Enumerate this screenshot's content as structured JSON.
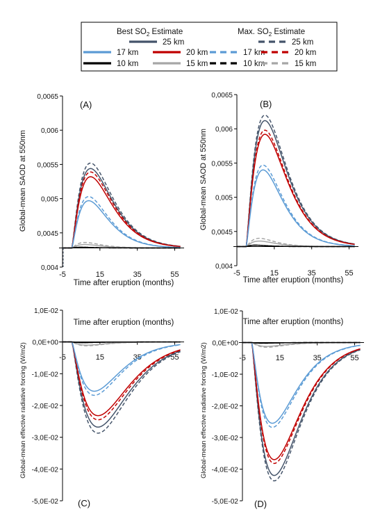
{
  "legend": {
    "best_title_main": "Best SO",
    "best_title_sub": "2",
    "best_title_tail": " Estimate",
    "max_title_main": "Max. SO",
    "max_title_sub": "2",
    "max_title_tail": " Estimate",
    "best_items": [
      {
        "label": "25 km",
        "color": "#44546a",
        "dashed": false
      },
      {
        "label": "17 km",
        "color": "#5b9bd5",
        "dashed": false
      },
      {
        "label": "20 km",
        "color": "#c00000",
        "dashed": false
      },
      {
        "label": "10 km",
        "color": "#000000",
        "dashed": false
      },
      {
        "label": "15 km",
        "color": "#a6a6a6",
        "dashed": false
      }
    ],
    "max_items": [
      {
        "label": "25 km",
        "color": "#44546a",
        "dashed": true
      },
      {
        "label": "17 km",
        "color": "#5b9bd5",
        "dashed": true
      },
      {
        "label": "20 km",
        "color": "#c00000",
        "dashed": true
      },
      {
        "label": "10 km",
        "color": "#000000",
        "dashed": true
      },
      {
        "label": "15 km",
        "color": "#a6a6a6",
        "dashed": true
      }
    ]
  },
  "chart_data": [
    {
      "type": "line",
      "panel_label": "(A)",
      "xlabel": "Time after eruption (months)",
      "ylabel": "Global-mean SAOD at 550nm",
      "xlim": [
        -5,
        60
      ],
      "ylim": [
        0.004,
        0.0065
      ],
      "xticks": [
        "-5",
        "15",
        "35",
        "55"
      ],
      "yticks": [
        "0,004",
        "0,0045",
        "0,005",
        "0,0055",
        "0,006",
        "0,0065"
      ],
      "baseline": 0.00428,
      "series": [
        {
          "name": "25 km",
          "estimate": "Best",
          "color": "#44546a",
          "dashed": false,
          "peak": 0.00544,
          "peak_month": 10
        },
        {
          "name": "25 km",
          "estimate": "Max.",
          "color": "#44546a",
          "dashed": true,
          "peak": 0.00552,
          "peak_month": 10
        },
        {
          "name": "20 km",
          "estimate": "Best",
          "color": "#c00000",
          "dashed": false,
          "peak": 0.00532,
          "peak_month": 10
        },
        {
          "name": "20 km",
          "estimate": "Max.",
          "color": "#c00000",
          "dashed": true,
          "peak": 0.00539,
          "peak_month": 10
        },
        {
          "name": "17 km",
          "estimate": "Best",
          "color": "#5b9bd5",
          "dashed": false,
          "peak": 0.00497,
          "peak_month": 9
        },
        {
          "name": "17 km",
          "estimate": "Max.",
          "color": "#5b9bd5",
          "dashed": true,
          "peak": 0.00503,
          "peak_month": 9
        },
        {
          "name": "15 km",
          "estimate": "Best",
          "color": "#a6a6a6",
          "dashed": false,
          "peak": 0.00433,
          "peak_month": 7
        },
        {
          "name": "15 km",
          "estimate": "Max.",
          "color": "#a6a6a6",
          "dashed": true,
          "peak": 0.00436,
          "peak_month": 7
        },
        {
          "name": "10 km",
          "estimate": "Best",
          "color": "#000000",
          "dashed": false,
          "peak": 0.00429,
          "peak_month": 5
        },
        {
          "name": "10 km",
          "estimate": "Max.",
          "color": "#000000",
          "dashed": true,
          "peak": 0.00429,
          "peak_month": 5
        }
      ]
    },
    {
      "type": "line",
      "panel_label": "(B)",
      "xlabel": "Time after eruption (months)",
      "ylabel": "Global-mean SAOD at 550nm",
      "xlim": [
        -5,
        60
      ],
      "ylim": [
        0.004,
        0.0065
      ],
      "xticks": [
        "-5",
        "15",
        "35",
        "55"
      ],
      "yticks": [
        "0,004",
        "0,0045",
        "0,005",
        "0,0055",
        "0,006",
        "0,0065"
      ],
      "baseline": 0.00428,
      "series": [
        {
          "name": "25 km",
          "estimate": "Best",
          "color": "#44546a",
          "dashed": false,
          "peak": 0.00612,
          "peak_month": 10
        },
        {
          "name": "25 km",
          "estimate": "Max.",
          "color": "#44546a",
          "dashed": true,
          "peak": 0.0062,
          "peak_month": 10
        },
        {
          "name": "20 km",
          "estimate": "Best",
          "color": "#c00000",
          "dashed": false,
          "peak": 0.00592,
          "peak_month": 10
        },
        {
          "name": "20 km",
          "estimate": "Max.",
          "color": "#c00000",
          "dashed": true,
          "peak": 0.00598,
          "peak_month": 10
        },
        {
          "name": "17 km",
          "estimate": "Best",
          "color": "#5b9bd5",
          "dashed": false,
          "peak": 0.0054,
          "peak_month": 9
        },
        {
          "name": "17 km",
          "estimate": "Max.",
          "color": "#5b9bd5",
          "dashed": true,
          "peak": 0.00547,
          "peak_month": 9
        },
        {
          "name": "15 km",
          "estimate": "Best",
          "color": "#a6a6a6",
          "dashed": false,
          "peak": 0.00436,
          "peak_month": 7
        },
        {
          "name": "15 km",
          "estimate": "Max.",
          "color": "#a6a6a6",
          "dashed": true,
          "peak": 0.0044,
          "peak_month": 7
        },
        {
          "name": "10 km",
          "estimate": "Best",
          "color": "#000000",
          "dashed": false,
          "peak": 0.0043,
          "peak_month": 5
        },
        {
          "name": "10 km",
          "estimate": "Max.",
          "color": "#000000",
          "dashed": true,
          "peak": 0.0043,
          "peak_month": 5
        }
      ]
    },
    {
      "type": "line",
      "panel_label": "(C)",
      "xlabel": "Time after eruption (months)",
      "ylabel": "Global-mean effective radiative forcing (W/m2)",
      "xlim": [
        -5,
        60
      ],
      "ylim": [
        -0.05,
        0.01
      ],
      "xticks": [
        "-5",
        "15",
        "35",
        "55"
      ],
      "yticks": [
        "1,0E-02",
        "0,0E+00",
        "-1,0E-02",
        "-2,0E-02",
        "-3,0E-02",
        "-4,0E-02",
        "-5,0E-02"
      ],
      "baseline": 0,
      "series": [
        {
          "name": "25 km",
          "estimate": "Best",
          "color": "#44546a",
          "dashed": false,
          "peak": -0.0268,
          "peak_month": 14
        },
        {
          "name": "25 km",
          "estimate": "Max.",
          "color": "#44546a",
          "dashed": true,
          "peak": -0.0287,
          "peak_month": 14
        },
        {
          "name": "20 km",
          "estimate": "Best",
          "color": "#c00000",
          "dashed": false,
          "peak": -0.0232,
          "peak_month": 14
        },
        {
          "name": "20 km",
          "estimate": "Max.",
          "color": "#c00000",
          "dashed": true,
          "peak": -0.0245,
          "peak_month": 14
        },
        {
          "name": "17 km",
          "estimate": "Best",
          "color": "#5b9bd5",
          "dashed": false,
          "peak": -0.0155,
          "peak_month": 12
        },
        {
          "name": "17 km",
          "estimate": "Max.",
          "color": "#5b9bd5",
          "dashed": true,
          "peak": -0.0168,
          "peak_month": 12
        },
        {
          "name": "15 km",
          "estimate": "Best",
          "color": "#a6a6a6",
          "dashed": false,
          "peak": -0.001,
          "peak_month": 8
        },
        {
          "name": "15 km",
          "estimate": "Max.",
          "color": "#a6a6a6",
          "dashed": true,
          "peak": -0.0012,
          "peak_month": 8
        },
        {
          "name": "10 km",
          "estimate": "Best",
          "color": "#000000",
          "dashed": false,
          "peak": -0.0002,
          "peak_month": 6
        },
        {
          "name": "10 km",
          "estimate": "Max.",
          "color": "#000000",
          "dashed": true,
          "peak": -0.0002,
          "peak_month": 6
        }
      ]
    },
    {
      "type": "line",
      "panel_label": "(D)",
      "xlabel": "Time after eruption (months)",
      "ylabel": "Global-mean effective radiative forcing (W/m2)",
      "xlim": [
        -5,
        60
      ],
      "ylim": [
        -0.05,
        0.01
      ],
      "xticks": [
        "-5",
        "15",
        "35",
        "55"
      ],
      "yticks": [
        "1,0E-02",
        "0,0E+00",
        "-1,0E-02",
        "-2,0E-02",
        "-3,0E-02",
        "-4,0E-02",
        "-5,0E-02"
      ],
      "baseline": 0,
      "series": [
        {
          "name": "25 km",
          "estimate": "Best",
          "color": "#44546a",
          "dashed": false,
          "peak": -0.042,
          "peak_month": 12
        },
        {
          "name": "25 km",
          "estimate": "Max.",
          "color": "#44546a",
          "dashed": true,
          "peak": -0.0437,
          "peak_month": 12
        },
        {
          "name": "20 km",
          "estimate": "Best",
          "color": "#c00000",
          "dashed": false,
          "peak": -0.037,
          "peak_month": 12
        },
        {
          "name": "20 km",
          "estimate": "Max.",
          "color": "#c00000",
          "dashed": true,
          "peak": -0.0382,
          "peak_month": 12
        },
        {
          "name": "17 km",
          "estimate": "Best",
          "color": "#5b9bd5",
          "dashed": false,
          "peak": -0.0255,
          "peak_month": 11
        },
        {
          "name": "17 km",
          "estimate": "Max.",
          "color": "#5b9bd5",
          "dashed": true,
          "peak": -0.0268,
          "peak_month": 11
        },
        {
          "name": "15 km",
          "estimate": "Best",
          "color": "#a6a6a6",
          "dashed": false,
          "peak": -0.0012,
          "peak_month": 8
        },
        {
          "name": "15 km",
          "estimate": "Max.",
          "color": "#a6a6a6",
          "dashed": true,
          "peak": -0.0015,
          "peak_month": 8
        },
        {
          "name": "10 km",
          "estimate": "Best",
          "color": "#000000",
          "dashed": false,
          "peak": -0.0002,
          "peak_month": 6
        },
        {
          "name": "10 km",
          "estimate": "Max.",
          "color": "#000000",
          "dashed": true,
          "peak": -0.0002,
          "peak_month": 6
        }
      ]
    }
  ]
}
